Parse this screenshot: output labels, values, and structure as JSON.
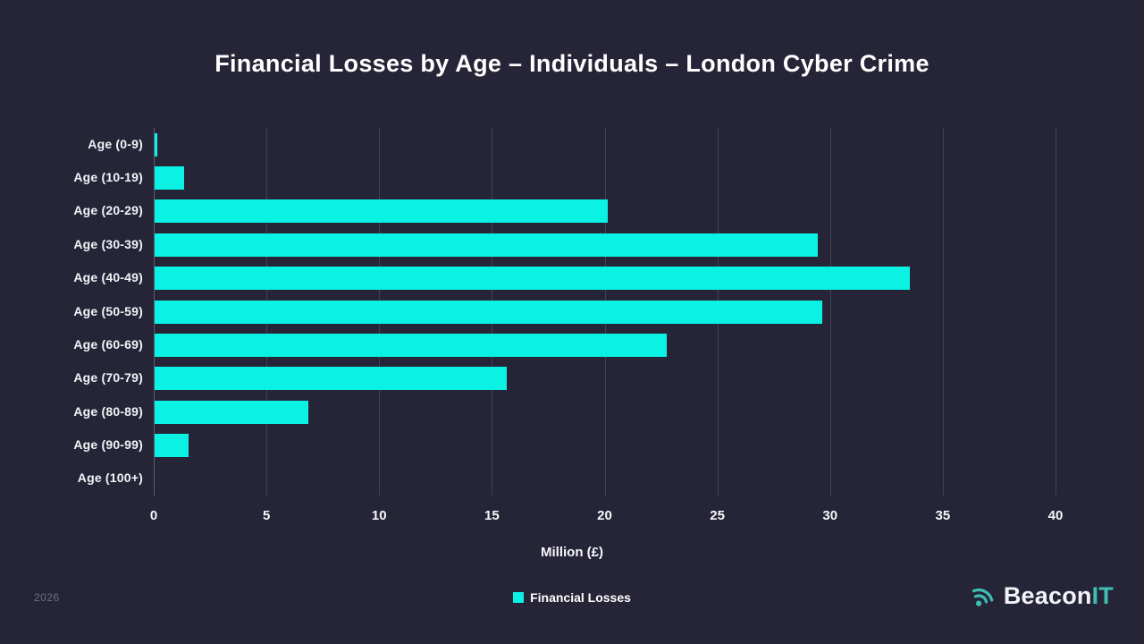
{
  "title": "Financial Losses by Age – Individuals – London Cyber Crime",
  "chart_data": {
    "type": "bar",
    "orientation": "horizontal",
    "title": "Financial Losses by Age – Individuals – London Cyber Crime",
    "categories": [
      "Age (0-9)",
      "Age (10-19)",
      "Age (20-29)",
      "Age (30-39)",
      "Age (40-49)",
      "Age (50-59)",
      "Age (60-69)",
      "Age (70-79)",
      "Age (80-89)",
      "Age (90-99)",
      "Age (100+)"
    ],
    "series": [
      {
        "name": "Financial Losses",
        "values": [
          0.1,
          1.3,
          20.1,
          29.4,
          33.5,
          29.6,
          22.7,
          15.6,
          6.8,
          1.5,
          0
        ]
      }
    ],
    "xlabel": "Million (£)",
    "xlim": [
      0,
      40
    ],
    "xticks": [
      0,
      5,
      10,
      15,
      20,
      25,
      30,
      35,
      40
    ],
    "grid": true,
    "legend_position": "bottom"
  },
  "legend": {
    "label": "Financial Losses"
  },
  "footer": {
    "year": "2026",
    "brand_primary": "Beacon",
    "brand_secondary": "IT"
  },
  "colors": {
    "background": "#262537",
    "bar": "#0af2e4",
    "grid": "#40405a",
    "axis_line": "#5a5a74",
    "text": "#ffffff",
    "muted": "#6e6e84",
    "brand_teal": "#3fbfb4"
  }
}
